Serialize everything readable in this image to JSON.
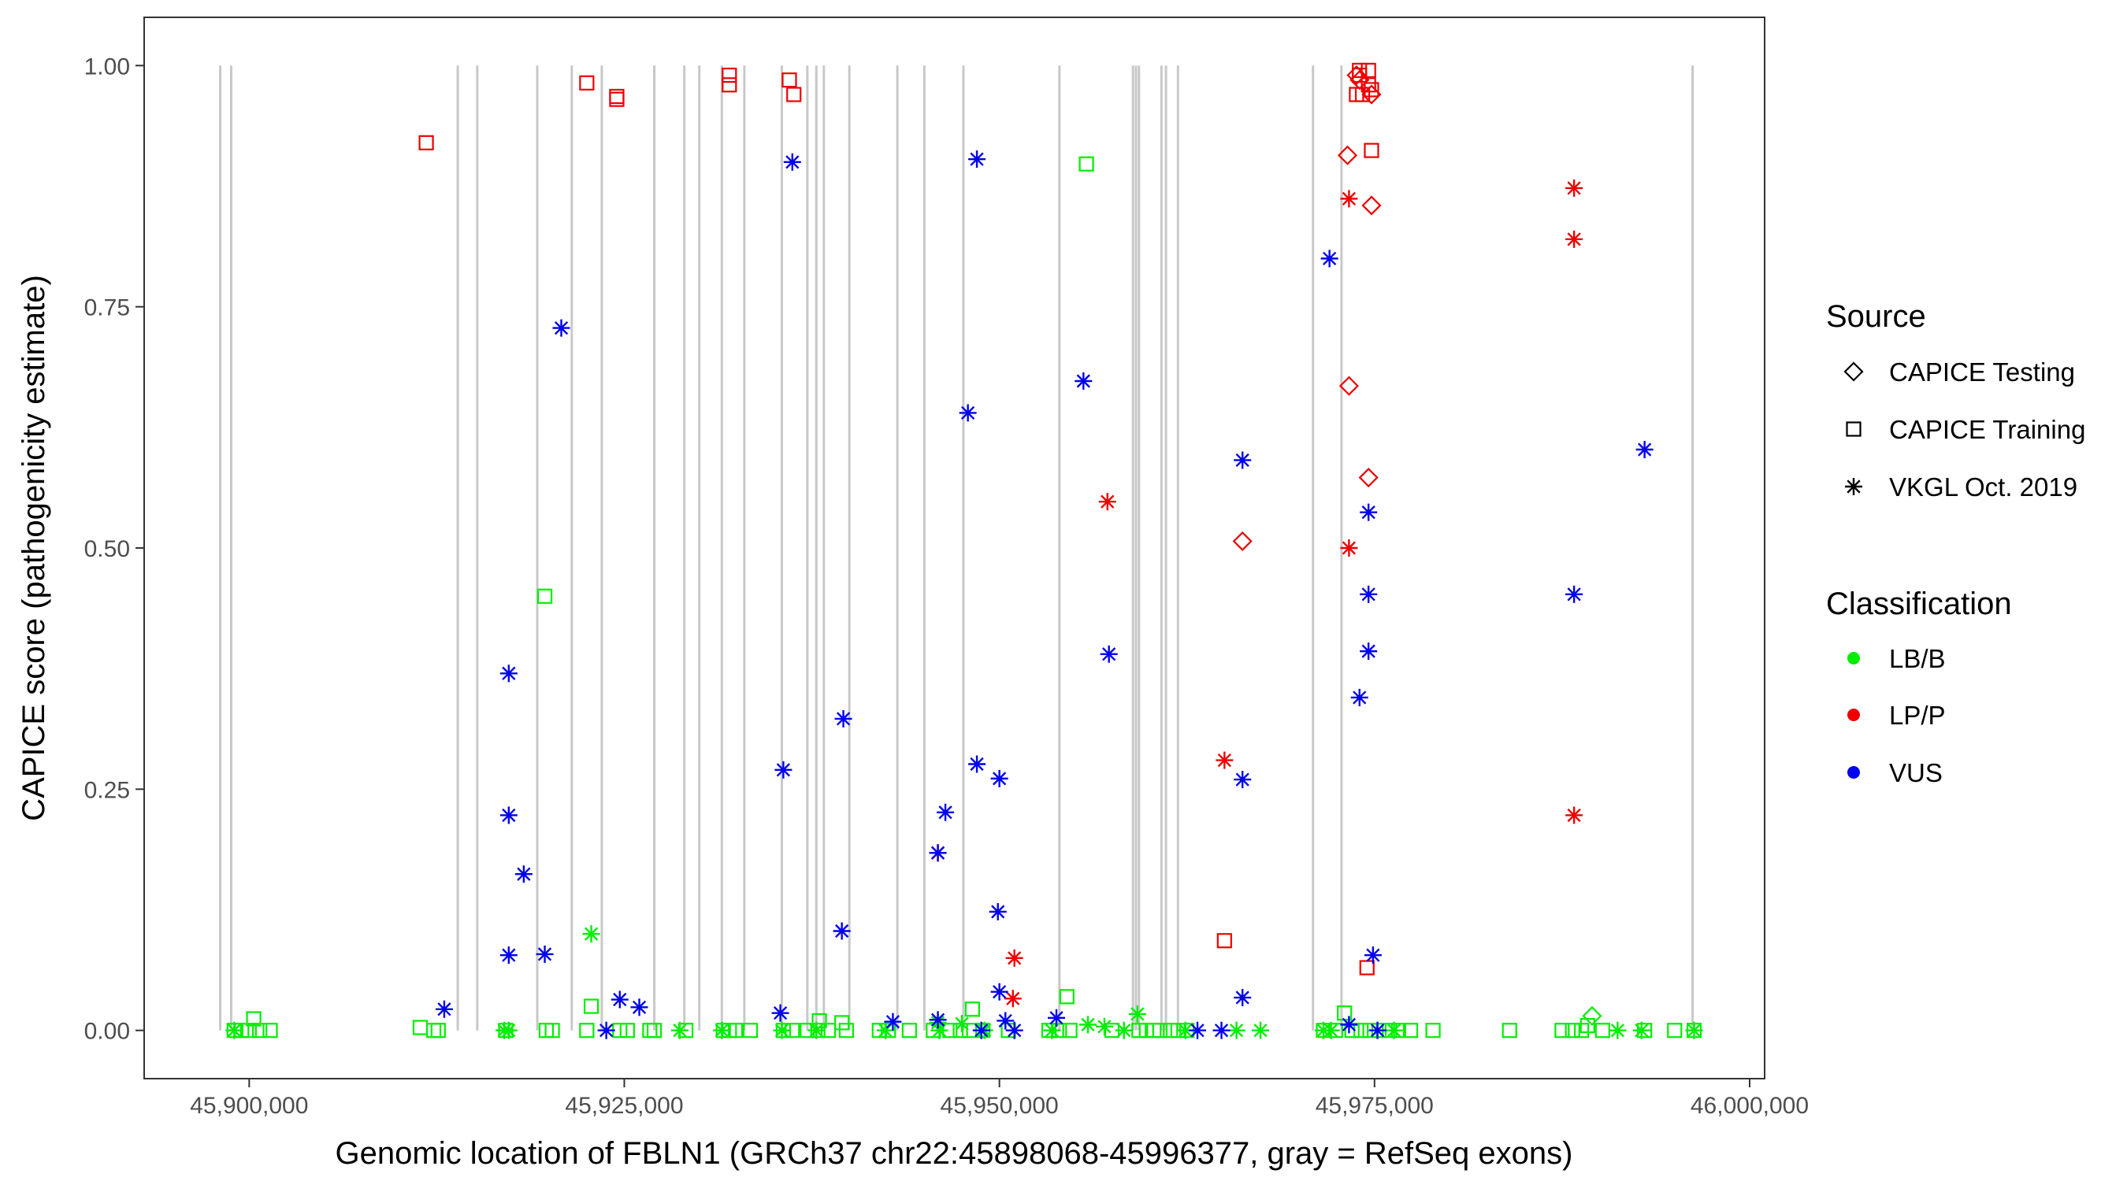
{
  "chart_data": {
    "type": "scatter",
    "xlabel": "Genomic location of FBLN1 (GRCh37 chr22:45898068-45996377, gray = RefSeq exons)",
    "ylabel": "CAPICE score (pathogenicity estimate)",
    "xlim": [
      45893000,
      46001000
    ],
    "ylim": [
      -0.05,
      1.05
    ],
    "x_ticks": [
      {
        "value": 45900000,
        "label": "45,900,000"
      },
      {
        "value": 45925000,
        "label": "45,925,000"
      },
      {
        "value": 45950000,
        "label": "45,950,000"
      },
      {
        "value": 45975000,
        "label": "45,975,000"
      },
      {
        "value": 46000000,
        "label": "46,000,000"
      }
    ],
    "y_ticks": [
      {
        "value": 0,
        "label": "0.00"
      },
      {
        "value": 0.25,
        "label": "0.25"
      },
      {
        "value": 0.5,
        "label": "0.50"
      },
      {
        "value": 0.75,
        "label": "0.75"
      },
      {
        "value": 1,
        "label": "1.00"
      }
    ],
    "grid": false,
    "exon_color": "#c8c8c8",
    "exons": [
      45898068,
      45898800,
      45913900,
      45915200,
      45919200,
      45921500,
      45923500,
      45927000,
      45929000,
      45930000,
      45931500,
      45933000,
      45935500,
      45937200,
      45937800,
      45938300,
      45940000,
      45943200,
      45945000,
      45947600,
      45954000,
      45958900,
      45959100,
      45959300,
      45960800,
      45961100,
      45961900,
      45970900,
      45972800,
      45996200
    ],
    "source_shapes": {
      "CAPICE Testing": "diamond",
      "CAPICE Training": "square",
      "VKGL Oct. 2019": "asterisk"
    },
    "classification_colors": {
      "LB/B": "#00ee00",
      "LP/P": "#ee0000",
      "VUS": "#0000ee"
    },
    "legend": {
      "position": "right",
      "source": {
        "title": "Source",
        "items": [
          "CAPICE Testing",
          "CAPICE Training",
          "VKGL Oct. 2019"
        ]
      },
      "classification": {
        "title": "Classification",
        "items": [
          "LB/B",
          "LP/P",
          "VUS"
        ]
      }
    },
    "series": [
      {
        "source": "CAPICE Training",
        "classification": "LP/P",
        "points": [
          [
            45911800,
            0.92
          ],
          [
            45922500,
            0.982
          ],
          [
            45924500,
            0.968
          ],
          [
            45924500,
            0.965
          ],
          [
            45932000,
            0.99
          ],
          [
            45932000,
            0.98
          ],
          [
            45936000,
            0.985
          ],
          [
            45936300,
            0.97
          ],
          [
            45965000,
            0.093
          ],
          [
            45974000,
            0.995
          ],
          [
            45974000,
            0.99
          ],
          [
            45974600,
            0.995
          ],
          [
            45973800,
            0.97
          ],
          [
            45974200,
            0.97
          ],
          [
            45974600,
            0.98
          ],
          [
            45974800,
            0.975
          ],
          [
            45974800,
            0.912
          ],
          [
            45974500,
            0.065
          ]
        ]
      },
      {
        "source": "CAPICE Testing",
        "classification": "LP/P",
        "points": [
          [
            45973800,
            0.99
          ],
          [
            45974000,
            0.985
          ],
          [
            45974800,
            0.97
          ],
          [
            45973200,
            0.907
          ],
          [
            45974800,
            0.855
          ],
          [
            45973300,
            0.668
          ],
          [
            45974600,
            0.573
          ],
          [
            45966200,
            0.507
          ]
        ]
      },
      {
        "source": "CAPICE Testing",
        "classification": "LB/B",
        "points": [
          [
            45989500,
            0.015
          ]
        ]
      },
      {
        "source": "CAPICE Training",
        "classification": "LB/B",
        "points": [
          [
            45955800,
            0.898
          ],
          [
            45919700,
            0.45
          ],
          [
            45954500,
            0.035
          ],
          [
            45922800,
            0.025
          ],
          [
            45948200,
            0.022
          ],
          [
            45900300,
            0.012
          ],
          [
            45973000,
            0.018
          ],
          [
            45938000,
            0.01
          ],
          [
            45939500,
            0.008
          ],
          [
            45899000,
            0
          ],
          [
            45899500,
            0
          ],
          [
            45900000,
            0
          ],
          [
            45900700,
            0
          ],
          [
            45901400,
            0
          ],
          [
            45911400,
            0.003
          ],
          [
            45912300,
            0
          ],
          [
            45912600,
            0
          ],
          [
            45917100,
            0
          ],
          [
            45919800,
            0
          ],
          [
            45920200,
            0
          ],
          [
            45922500,
            0
          ],
          [
            45924700,
            0
          ],
          [
            45925200,
            0
          ],
          [
            45926700,
            0
          ],
          [
            45927000,
            0
          ],
          [
            45929100,
            0
          ],
          [
            45931600,
            0
          ],
          [
            45932000,
            0
          ],
          [
            45932400,
            0
          ],
          [
            45933400,
            0
          ],
          [
            45935600,
            0
          ],
          [
            45936200,
            0
          ],
          [
            45937200,
            0
          ],
          [
            45937900,
            0
          ],
          [
            45938600,
            0
          ],
          [
            45939800,
            0
          ],
          [
            45942000,
            0
          ],
          [
            45942600,
            0
          ],
          [
            45944000,
            0
          ],
          [
            45945600,
            0
          ],
          [
            45946700,
            0
          ],
          [
            45947400,
            0
          ],
          [
            45948000,
            0
          ],
          [
            45948900,
            0
          ],
          [
            45950600,
            0
          ],
          [
            45953300,
            0
          ],
          [
            45954000,
            0
          ],
          [
            45954700,
            0
          ],
          [
            45957500,
            0
          ],
          [
            45959300,
            0
          ],
          [
            45959800,
            0
          ],
          [
            45960300,
            0
          ],
          [
            45960700,
            0
          ],
          [
            45961400,
            0
          ],
          [
            45961900,
            0
          ],
          [
            45962500,
            0
          ],
          [
            45971600,
            0
          ],
          [
            45972400,
            0
          ],
          [
            45973500,
            0
          ],
          [
            45974100,
            0
          ],
          [
            45974700,
            0
          ],
          [
            45975300,
            0
          ],
          [
            45976000,
            0
          ],
          [
            45976600,
            0
          ],
          [
            45977400,
            0
          ],
          [
            45978900,
            0
          ],
          [
            45984000,
            0
          ],
          [
            45987500,
            0
          ],
          [
            45988200,
            0
          ],
          [
            45988800,
            0
          ],
          [
            45990200,
            0
          ],
          [
            45993000,
            0
          ],
          [
            45995000,
            0
          ],
          [
            45989200,
            0.005
          ],
          [
            45996300,
            0
          ]
        ]
      },
      {
        "source": "VKGL Oct. 2019",
        "classification": "LB/B",
        "points": [
          [
            45922800,
            0.1
          ],
          [
            45959200,
            0.017
          ],
          [
            45955900,
            0.006
          ],
          [
            45957000,
            0.004
          ],
          [
            45945900,
            0.008
          ],
          [
            45947500,
            0.007
          ],
          [
            45899000,
            0
          ],
          [
            45917000,
            0
          ],
          [
            45917300,
            0
          ],
          [
            45928700,
            0
          ],
          [
            45931500,
            0
          ],
          [
            45935500,
            0
          ],
          [
            45937800,
            0
          ],
          [
            45942400,
            0
          ],
          [
            45946000,
            0
          ],
          [
            45949000,
            0
          ],
          [
            45953500,
            0
          ],
          [
            45958300,
            0
          ],
          [
            45962400,
            0
          ],
          [
            45965800,
            0
          ],
          [
            45967400,
            0
          ],
          [
            45971600,
            0
          ],
          [
            45972100,
            0
          ],
          [
            45976300,
            0
          ],
          [
            45991200,
            0
          ],
          [
            45992800,
            0
          ],
          [
            45996300,
            0
          ]
        ]
      },
      {
        "source": "VKGL Oct. 2019",
        "classification": "LP/P",
        "points": [
          [
            45988300,
            0.873
          ],
          [
            45988300,
            0.82
          ],
          [
            45973300,
            0.862
          ],
          [
            45957200,
            0.548
          ],
          [
            45973300,
            0.5
          ],
          [
            45965000,
            0.28
          ],
          [
            45988300,
            0.223
          ],
          [
            45945900,
            0.184
          ],
          [
            45951000,
            0.075
          ],
          [
            45950900,
            0.033
          ]
        ]
      },
      {
        "source": "VKGL Oct. 2019",
        "classification": "VUS",
        "points": [
          [
            45948500,
            0.903
          ],
          [
            45936200,
            0.9
          ],
          [
            45972000,
            0.8
          ],
          [
            45920800,
            0.728
          ],
          [
            45955600,
            0.673
          ],
          [
            45947900,
            0.64
          ],
          [
            45993000,
            0.602
          ],
          [
            45966200,
            0.591
          ],
          [
            45974600,
            0.537
          ],
          [
            45988300,
            0.452
          ],
          [
            45974600,
            0.452
          ],
          [
            45974600,
            0.393
          ],
          [
            45957300,
            0.39
          ],
          [
            45917300,
            0.37
          ],
          [
            45974000,
            0.345
          ],
          [
            45939600,
            0.323
          ],
          [
            45935600,
            0.27
          ],
          [
            45948500,
            0.276
          ],
          [
            45950000,
            0.261
          ],
          [
            45966200,
            0.26
          ],
          [
            45946400,
            0.226
          ],
          [
            45917300,
            0.223
          ],
          [
            45918300,
            0.162
          ],
          [
            45945900,
            0.184
          ],
          [
            45949900,
            0.123
          ],
          [
            45939500,
            0.103
          ],
          [
            45917300,
            0.078
          ],
          [
            45919700,
            0.079
          ],
          [
            45974900,
            0.078
          ],
          [
            45950000,
            0.04
          ],
          [
            45966200,
            0.034
          ],
          [
            45924700,
            0.032
          ],
          [
            45926000,
            0.024
          ],
          [
            45913000,
            0.022
          ],
          [
            45935400,
            0.018
          ],
          [
            45953800,
            0.013
          ],
          [
            45950400,
            0.01
          ],
          [
            45945900,
            0.011
          ],
          [
            45942900,
            0.009
          ],
          [
            45973300,
            0.006
          ],
          [
            45923800,
            0
          ],
          [
            45948800,
            0
          ],
          [
            45951000,
            0
          ],
          [
            45963200,
            0
          ],
          [
            45964800,
            0
          ],
          [
            45975200,
            0
          ]
        ]
      }
    ]
  }
}
